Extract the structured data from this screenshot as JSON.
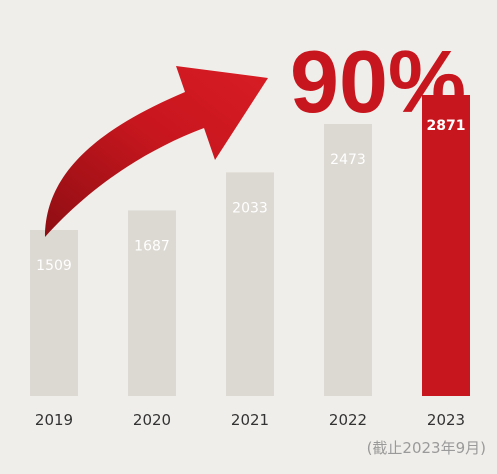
{
  "chart_data": {
    "type": "bar",
    "categories": [
      "2019",
      "2020",
      "2021",
      "2022",
      "2023"
    ],
    "values": [
      1509,
      1687,
      2033,
      2473,
      2871
    ],
    "highlight_category": "2023",
    "highlight_text": "90%",
    "note": "(截止2023年9月)",
    "colors": {
      "bar": "#dcd8d2",
      "highlight_bar": "#c8161e",
      "arrow": "#c8161e",
      "value_label": "#ffffff",
      "tick_label": "#333333",
      "note": "#9a9a9a",
      "background": "#f0eeea"
    },
    "icon": "growth-arrow-icon"
  }
}
